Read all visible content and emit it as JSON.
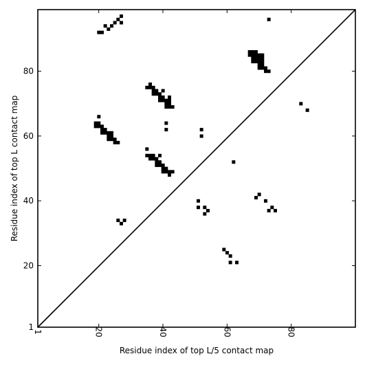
{
  "chart_data": {
    "type": "heatmap",
    "title": "",
    "xlabel": "Residue index of top L/5 contact map",
    "ylabel": "Residue index of top L contact map",
    "xlim": [
      1,
      100
    ],
    "ylim": [
      1,
      99
    ],
    "x_ticks": [
      1,
      20,
      40,
      60,
      80
    ],
    "y_ticks": [
      1,
      20,
      40,
      60,
      80
    ],
    "x_tick_labels": [
      "1",
      "20",
      "40",
      "60",
      "80"
    ],
    "y_tick_labels": [
      "1",
      "20",
      "40",
      "60",
      "80"
    ],
    "grid": false,
    "diagonal": true,
    "colors": {
      "cell": "#000000",
      "background": "#ffffff",
      "axis": "#000000"
    },
    "cells": [
      [
        20,
        92
      ],
      [
        21,
        92
      ],
      [
        22,
        94
      ],
      [
        23,
        93
      ],
      [
        24,
        94
      ],
      [
        25,
        95
      ],
      [
        26,
        96
      ],
      [
        27,
        97
      ],
      [
        27,
        95
      ],
      [
        73,
        96
      ],
      [
        67,
        86
      ],
      [
        68,
        86
      ],
      [
        69,
        86
      ],
      [
        67,
        85
      ],
      [
        68,
        85
      ],
      [
        69,
        85
      ],
      [
        70,
        85
      ],
      [
        71,
        85
      ],
      [
        68,
        84
      ],
      [
        69,
        84
      ],
      [
        70,
        84
      ],
      [
        71,
        84
      ],
      [
        68,
        83
      ],
      [
        69,
        83
      ],
      [
        70,
        83
      ],
      [
        71,
        83
      ],
      [
        70,
        82
      ],
      [
        71,
        82
      ],
      [
        70,
        81
      ],
      [
        71,
        81
      ],
      [
        72,
        81
      ],
      [
        72,
        80
      ],
      [
        73,
        80
      ],
      [
        35,
        75
      ],
      [
        36,
        75
      ],
      [
        36,
        76
      ],
      [
        37,
        75
      ],
      [
        37,
        74
      ],
      [
        38,
        74
      ],
      [
        37,
        73
      ],
      [
        38,
        73
      ],
      [
        39,
        73
      ],
      [
        40,
        74
      ],
      [
        39,
        72
      ],
      [
        40,
        72
      ],
      [
        39,
        71
      ],
      [
        40,
        71
      ],
      [
        41,
        71
      ],
      [
        42,
        71
      ],
      [
        42,
        72
      ],
      [
        41,
        70
      ],
      [
        42,
        70
      ],
      [
        41,
        69
      ],
      [
        42,
        69
      ],
      [
        43,
        69
      ],
      [
        41,
        64
      ],
      [
        41,
        62
      ],
      [
        52,
        62
      ],
      [
        52,
        60
      ],
      [
        83,
        70
      ],
      [
        85,
        68
      ],
      [
        20,
        66
      ],
      [
        19,
        64
      ],
      [
        20,
        64
      ],
      [
        19,
        63
      ],
      [
        20,
        63
      ],
      [
        21,
        63
      ],
      [
        21,
        62
      ],
      [
        22,
        62
      ],
      [
        21,
        61
      ],
      [
        22,
        61
      ],
      [
        23,
        61
      ],
      [
        24,
        61
      ],
      [
        23,
        60
      ],
      [
        24,
        60
      ],
      [
        23,
        59
      ],
      [
        24,
        59
      ],
      [
        25,
        59
      ],
      [
        25,
        58
      ],
      [
        26,
        58
      ],
      [
        35,
        56
      ],
      [
        35,
        54
      ],
      [
        36,
        54
      ],
      [
        37,
        54
      ],
      [
        36,
        53
      ],
      [
        37,
        53
      ],
      [
        38,
        53
      ],
      [
        39,
        54
      ],
      [
        38,
        52
      ],
      [
        39,
        52
      ],
      [
        38,
        51
      ],
      [
        39,
        51
      ],
      [
        40,
        51
      ],
      [
        40,
        50
      ],
      [
        41,
        50
      ],
      [
        40,
        49
      ],
      [
        41,
        49
      ],
      [
        42,
        49
      ],
      [
        43,
        49
      ],
      [
        42,
        48
      ],
      [
        62,
        52
      ],
      [
        51,
        40
      ],
      [
        51,
        38
      ],
      [
        53,
        38
      ],
      [
        54,
        37
      ],
      [
        53,
        36
      ],
      [
        70,
        42
      ],
      [
        69,
        41
      ],
      [
        72,
        40
      ],
      [
        74,
        38
      ],
      [
        73,
        37
      ],
      [
        75,
        37
      ],
      [
        26,
        34
      ],
      [
        28,
        34
      ],
      [
        27,
        33
      ],
      [
        59,
        25
      ],
      [
        60,
        24
      ],
      [
        61,
        23
      ],
      [
        61,
        21
      ],
      [
        63,
        21
      ]
    ]
  }
}
